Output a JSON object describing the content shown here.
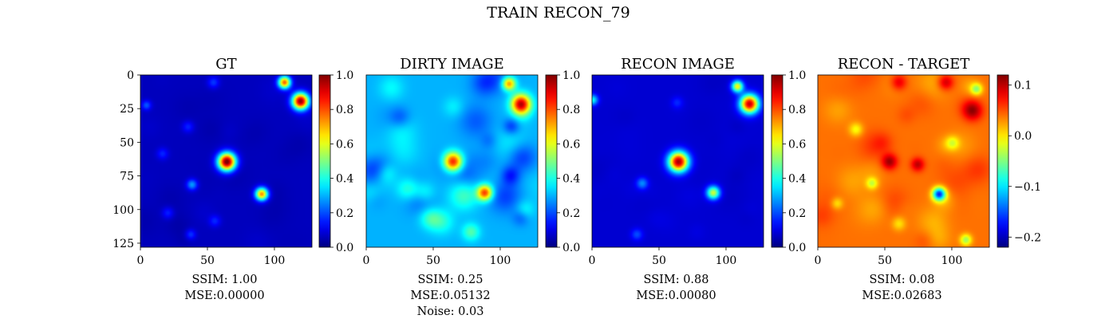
{
  "suptitle": "TRAIN RECON_79",
  "chart_data": [
    {
      "type": "heatmap",
      "title": "GT",
      "colormap": "jet",
      "xlim": [
        0,
        128
      ],
      "ylim": [
        128,
        0
      ],
      "x_ticks": [
        "0",
        "50",
        "100"
      ],
      "y_ticks": [
        "0",
        "25",
        "50",
        "75",
        "100",
        "125"
      ],
      "colorbar": {
        "range": [
          0.0,
          1.0
        ],
        "ticks": [
          "0.0",
          "0.2",
          "0.4",
          "0.6",
          "0.8",
          "1.0"
        ]
      },
      "background": 0.06,
      "sources": [
        {
          "x": 64,
          "y": 64,
          "amp": 0.97,
          "sigma": 4.6
        },
        {
          "x": 119,
          "y": 19,
          "amp": 0.93,
          "sigma": 4.3
        },
        {
          "x": 107,
          "y": 5,
          "amp": 0.72,
          "sigma": 3.2
        },
        {
          "x": 90,
          "y": 88,
          "amp": 0.68,
          "sigma": 3.3
        },
        {
          "x": 38,
          "y": 81,
          "amp": 0.22,
          "sigma": 2.8
        },
        {
          "x": 54,
          "y": 5,
          "amp": 0.12,
          "sigma": 3.0
        },
        {
          "x": 35,
          "y": 38,
          "amp": 0.1,
          "sigma": 3.0
        },
        {
          "x": 55,
          "y": 108,
          "amp": 0.1,
          "sigma": 3.0
        },
        {
          "x": 37,
          "y": 118,
          "amp": 0.12,
          "sigma": 2.7
        },
        {
          "x": 16,
          "y": 58,
          "amp": 0.1,
          "sigma": 3.0
        },
        {
          "x": 20,
          "y": 102,
          "amp": 0.1,
          "sigma": 3.0
        },
        {
          "x": 4,
          "y": 22,
          "amp": 0.15,
          "sigma": 2.5
        }
      ],
      "captions": [
        "SSIM: 1.00",
        "MSE:0.00000"
      ]
    },
    {
      "type": "heatmap",
      "title": "DIRTY IMAGE",
      "colormap": "jet",
      "xlim": [
        0,
        128
      ],
      "ylim": [
        128,
        0
      ],
      "x_ticks": [
        "0",
        "50",
        "100"
      ],
      "colorbar": {
        "range": [
          0.0,
          1.0
        ],
        "ticks": [
          "0.0",
          "0.2",
          "0.4",
          "0.6",
          "0.8",
          "1.0"
        ]
      },
      "background": 0.3,
      "sources": [
        {
          "x": 64,
          "y": 64,
          "amp": 0.68,
          "sigma": 5.0
        },
        {
          "x": 115,
          "y": 21,
          "amp": 0.62,
          "sigma": 5.0
        },
        {
          "x": 106,
          "y": 6,
          "amp": 0.45,
          "sigma": 3.5
        },
        {
          "x": 88,
          "y": 87,
          "amp": 0.52,
          "sigma": 4.0
        }
      ],
      "captions": [
        "SSIM: 0.25",
        "MSE:0.05132",
        "Noise: 0.03"
      ]
    },
    {
      "type": "heatmap",
      "title": "RECON IMAGE",
      "colormap": "jet",
      "xlim": [
        0,
        128
      ],
      "ylim": [
        128,
        0
      ],
      "x_ticks": [
        "0",
        "50",
        "100"
      ],
      "colorbar": {
        "range": [
          0.0,
          1.0
        ],
        "ticks": [
          "0.0",
          "0.2",
          "0.4",
          "0.6",
          "0.8",
          "1.0"
        ]
      },
      "background": 0.08,
      "sources": [
        {
          "x": 64,
          "y": 64,
          "amp": 0.9,
          "sigma": 5.2
        },
        {
          "x": 117,
          "y": 21,
          "amp": 0.85,
          "sigma": 4.8
        },
        {
          "x": 108,
          "y": 8,
          "amp": 0.55,
          "sigma": 3.0
        },
        {
          "x": 90,
          "y": 87,
          "amp": 0.5,
          "sigma": 3.4
        },
        {
          "x": 37,
          "y": 80,
          "amp": 0.18,
          "sigma": 3.0
        },
        {
          "x": 33,
          "y": 118,
          "amp": 0.12,
          "sigma": 3.0
        },
        {
          "x": 63,
          "y": 20,
          "amp": 0.08,
          "sigma": 3.0
        },
        {
          "x": 0,
          "y": 18,
          "amp": 0.3,
          "sigma": 2.8
        }
      ],
      "captions": [
        "SSIM: 0.88",
        "MSE:0.00080"
      ]
    },
    {
      "type": "heatmap",
      "title": "RECON - TARGET",
      "colormap": "jet",
      "xlim": [
        0,
        128
      ],
      "ylim": [
        128,
        0
      ],
      "x_ticks": [
        "0",
        "50",
        "100"
      ],
      "colorbar": {
        "range": [
          -0.22,
          0.12
        ],
        "ticks": [
          "−0.2",
          "−0.1",
          "0.0",
          "0.1"
        ]
      },
      "background": 0.04,
      "sources": [
        {
          "x": 53,
          "y": 64,
          "amp": 0.07,
          "sigma": 4.0
        },
        {
          "x": 74,
          "y": 66,
          "amp": 0.06,
          "sigma": 3.5
        },
        {
          "x": 115,
          "y": 26,
          "amp": 0.07,
          "sigma": 5.0
        },
        {
          "x": 90,
          "y": 88,
          "amp": -0.2,
          "sigma": 3.4
        },
        {
          "x": 40,
          "y": 80,
          "amp": -0.06,
          "sigma": 3.0
        },
        {
          "x": 118,
          "y": 10,
          "amp": -0.08,
          "sigma": 3.0
        },
        {
          "x": 28,
          "y": 40,
          "amp": -0.05,
          "sigma": 3.5
        },
        {
          "x": 100,
          "y": 50,
          "amp": -0.05,
          "sigma": 3.5
        },
        {
          "x": 60,
          "y": 110,
          "amp": -0.04,
          "sigma": 3.5
        },
        {
          "x": 60,
          "y": 5,
          "amp": 0.05,
          "sigma": 4.0
        },
        {
          "x": 95,
          "y": 5,
          "amp": 0.06,
          "sigma": 4.0
        },
        {
          "x": 110,
          "y": 122,
          "amp": -0.08,
          "sigma": 3.0
        },
        {
          "x": 14,
          "y": 95,
          "amp": -0.04,
          "sigma": 3.0
        }
      ],
      "captions": [
        "SSIM: 0.08",
        "MSE:0.02683"
      ]
    }
  ]
}
